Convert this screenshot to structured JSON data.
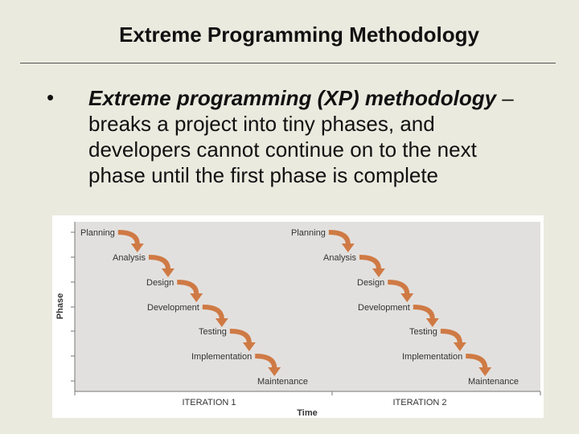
{
  "title": "Extreme Programming Methodology",
  "bullet": {
    "term": "Extreme programming (XP) methodology",
    "text": " – breaks a project into tiny phases, and developers cannot continue on to the next phase until the first phase is complete"
  },
  "diagram": {
    "y_axis_label": "Phase",
    "x_axis_label": "Time",
    "iterations": [
      {
        "label": "ITERATION 1",
        "phases": [
          "Planning",
          "Analysis",
          "Design",
          "Development",
          "Testing",
          "Implementation",
          "Maintenance"
        ]
      },
      {
        "label": "ITERATION 2",
        "phases": [
          "Planning",
          "Analysis",
          "Design",
          "Development",
          "Testing",
          "Implementation",
          "Maintenance"
        ]
      }
    ]
  }
}
